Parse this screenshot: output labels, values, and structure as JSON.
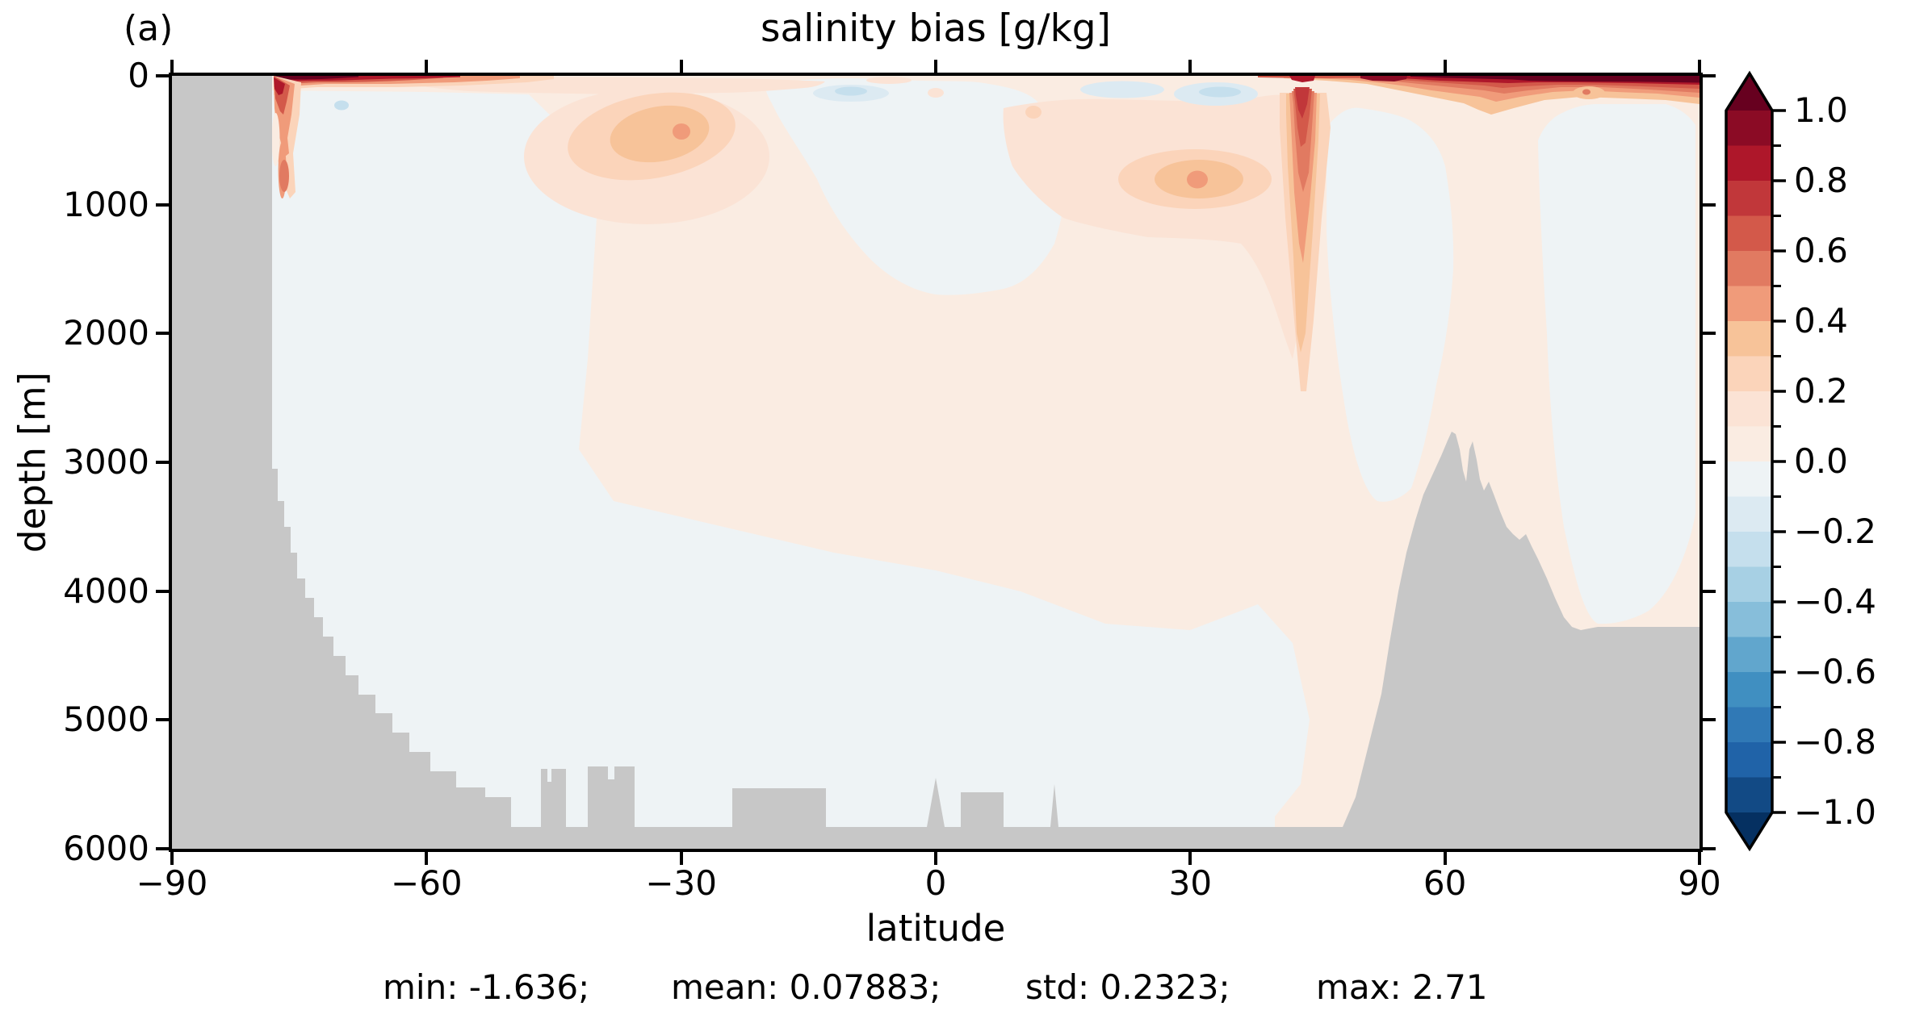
{
  "panel_label": "(a)",
  "title": "salinity bias [g/kg]",
  "xlabel": "latitude",
  "ylabel": "depth [m]",
  "stats_items": [
    "min: -1.636;",
    "mean: 0.07883;",
    "std: 0.2323;",
    "max: 2.71"
  ],
  "chart_data": {
    "type": "heatmap",
    "subtype": "filled-contour latitude-depth section",
    "title": "salinity bias [g/kg]",
    "xlabel": "latitude",
    "ylabel": "depth [m]",
    "xlim": [
      -90,
      90
    ],
    "ylim": [
      6000,
      0
    ],
    "x_ticks": [
      -90,
      -60,
      -30,
      0,
      30,
      60,
      90
    ],
    "x_tick_labels": [
      "−90",
      "−60",
      "−30",
      "0",
      "30",
      "60",
      "90"
    ],
    "y_ticks": [
      0,
      1000,
      2000,
      3000,
      4000,
      5000,
      6000
    ],
    "y_tick_labels": [
      "0",
      "1000",
      "2000",
      "3000",
      "4000",
      "5000",
      "6000"
    ],
    "grid": false,
    "stats": {
      "min": -1.636,
      "mean": 0.07883,
      "std": 0.2323,
      "max": 2.71
    },
    "colorbar": {
      "position": "right",
      "extend": "both",
      "level_min": -1.0,
      "level_max": 1.0,
      "level_step": 0.1,
      "tick_labels": [
        "1.0",
        "0.8",
        "0.6",
        "0.4",
        "0.2",
        "0.0",
        "−0.2",
        "−0.4",
        "−0.6",
        "−0.8",
        "−1.0"
      ],
      "band_colors": [
        "#8b0b25",
        "#ae172a",
        "#c1373a",
        "#d3594a",
        "#e17a61",
        "#f09b7a",
        "#f7c399",
        "#fbd4ba",
        "#fbe3d5",
        "#faece2",
        "#eef3f5",
        "#dceaf2",
        "#c5dfed",
        "#a7d0e4",
        "#87beda",
        "#61a6cd",
        "#408fc1",
        "#3079b6",
        "#2063a8",
        "#124a85"
      ]
    },
    "palette": {
      "under": "#053061",
      "b1": "#124a85",
      "b2": "#2063a8",
      "b3": "#3079b6",
      "b4": "#408fc1",
      "b5": "#61a6cd",
      "b6": "#87beda",
      "b7": "#a7d0e4",
      "b8": "#c5dfed",
      "b9": "#dceaf2",
      "b10": "#eef3f5",
      "b11": "#faece2",
      "b12": "#fbe3d5",
      "b13": "#fbd4ba",
      "b14": "#f7c399",
      "b15": "#f09b7a",
      "b16": "#e17a61",
      "b17": "#d3594a",
      "b18": "#c1373a",
      "b19": "#ae172a",
      "b20": "#8b0b25",
      "over": "#67001f",
      "land": "#c7c7c7",
      "background": "#ffffff"
    },
    "features": [
      {
        "name": "Antarctic surface salty strip",
        "lat": [
          -78,
          -45
        ],
        "depth_m": [
          0,
          110
        ],
        "bias": "0.5 to >1.0"
      },
      {
        "name": "Antarctic coastal salty column",
        "lat": [
          -78,
          -76
        ],
        "depth_m": [
          0,
          950
        ],
        "bias": "0.3 to 1.0"
      },
      {
        "name": "southern mid-depth salty maximum",
        "lat": [
          -48,
          -20
        ],
        "depth_m": [
          100,
          1150
        ],
        "bias": "0.1 to 0.45, core ~0.45 at 30S / 430 m"
      },
      {
        "name": "northern mid-depth salty maximum",
        "lat": [
          8,
          42
        ],
        "depth_m": [
          150,
          1300
        ],
        "bias": "0.1 to 0.45, core ~0.45 at 31N / 800 m"
      },
      {
        "name": "Mediterranean-outflow salty plume",
        "lat": [
          40.5,
          46.5
        ],
        "depth_m": [
          100,
          2450
        ],
        "bias": "0.2 to 0.8"
      },
      {
        "name": "Arctic surface salty cap",
        "lat": [
          55,
          90
        ],
        "depth_m": [
          0,
          220
        ],
        "bias": "0.4 to >1.0"
      },
      {
        "name": "shallow fresh patches",
        "lat": [
          -15,
          45
        ],
        "depth_m": [
          40,
          260
        ],
        "bias": "-0.3 to -0.1"
      },
      {
        "name": "deep fresh water mass",
        "lat": [
          -78,
          44
        ],
        "depth_m": [
          150,
          5800
        ],
        "bias": "-0.1 to 0"
      },
      {
        "name": "bathymetry / land mask",
        "lat": [
          -90,
          90
        ],
        "color": "#c7c7c7"
      }
    ]
  }
}
